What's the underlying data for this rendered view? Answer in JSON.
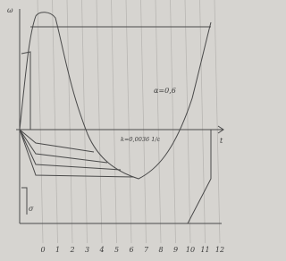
{
  "axis": {
    "y_label": "ω",
    "x_label": "t",
    "ticks": [
      "0",
      "1",
      "2",
      "3",
      "4",
      "5",
      "6",
      "7",
      "8",
      "9",
      "10",
      "11",
      "12"
    ]
  },
  "annotations": {
    "alpha": "α=0,6",
    "k": "k=0,0036 1/c",
    "sigma": "σ"
  }
}
